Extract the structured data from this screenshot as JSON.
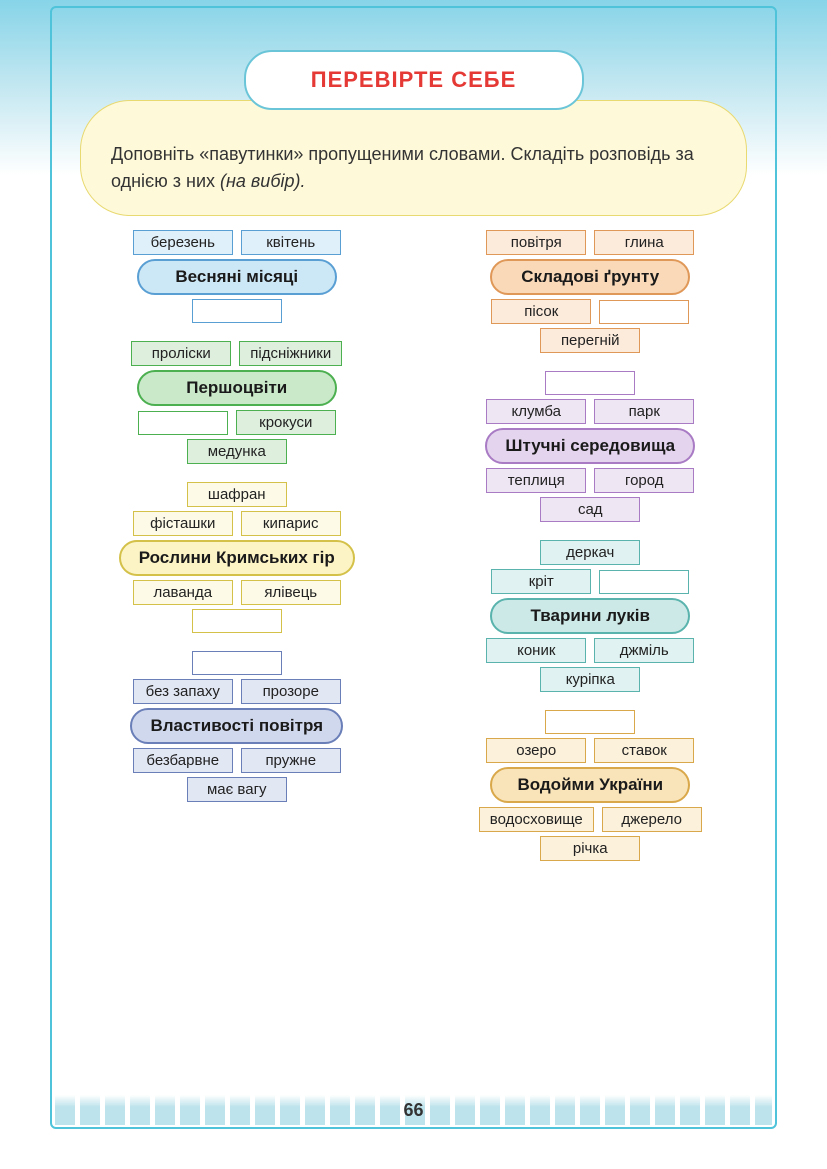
{
  "header_title": "ПЕРЕВІРТЕ СЕБЕ",
  "instruction": "Доповніть «павутинки» пропущеними словами. Складіть розповідь за однією з них ",
  "instruction_em": "(на вибір).",
  "page_number": "66",
  "columns": [
    [
      {
        "center": "Весняні місяці",
        "center_bg": "#cce7f5",
        "center_border": "#5a9fd4",
        "leaf_bg": "#e0f0fa",
        "leaf_border": "#5a9fd4",
        "top": [
          "березень",
          "квітень"
        ],
        "bottom": [
          ""
        ]
      },
      {
        "center": "Першоцвіти",
        "center_bg": "#c9e9c9",
        "center_border": "#4caf50",
        "leaf_bg": "#deefde",
        "leaf_border": "#4caf50",
        "top": [
          "проліски",
          "підсніжники"
        ],
        "bottom_rows": [
          [
            "",
            "крокуси"
          ],
          [
            "медунка"
          ]
        ]
      },
      {
        "center": "Рослини Кримських гір",
        "center_bg": "#fcf4c5",
        "center_border": "#d4c14a",
        "leaf_bg": "#fdfbe8",
        "leaf_border": "#d4c14a",
        "top_rows": [
          [
            "шафран"
          ],
          [
            "фісташки",
            "кипарис"
          ]
        ],
        "bottom_rows": [
          [
            "лаванда",
            "ялівець"
          ],
          [
            ""
          ]
        ]
      },
      {
        "center": "Властивості повітря",
        "center_bg": "#d0d8ee",
        "center_border": "#6a7fb8",
        "leaf_bg": "#e2e7f4",
        "leaf_border": "#6a7fb8",
        "top_rows": [
          [
            ""
          ],
          [
            "без запаху",
            "прозоре"
          ]
        ],
        "bottom_rows": [
          [
            "безбарвне",
            "пружне"
          ],
          [
            "має вагу"
          ]
        ]
      }
    ],
    [
      {
        "center": "Складові ґрунту",
        "center_bg": "#f9d9b8",
        "center_border": "#e09858",
        "leaf_bg": "#fceadb",
        "leaf_border": "#e09858",
        "top": [
          "повітря",
          "глина"
        ],
        "bottom_rows": [
          [
            "пісок",
            ""
          ],
          [
            "перегній"
          ]
        ]
      },
      {
        "center": "Штучні середовища",
        "center_bg": "#e4d4ed",
        "center_border": "#a87bc4",
        "leaf_bg": "#efe6f4",
        "leaf_border": "#a87bc4",
        "top_rows": [
          [
            ""
          ],
          [
            "клумба",
            "парк"
          ]
        ],
        "bottom_rows": [
          [
            "теплиця",
            "город"
          ],
          [
            "сад"
          ]
        ]
      },
      {
        "center": "Тварини луків",
        "center_bg": "#cce9e7",
        "center_border": "#5ab3ad",
        "leaf_bg": "#e0f2f1",
        "leaf_border": "#5ab3ad",
        "top_rows": [
          [
            "деркач"
          ],
          [
            "кріт",
            ""
          ]
        ],
        "bottom_rows": [
          [
            "коник",
            "джміль"
          ],
          [
            "куріпка"
          ]
        ]
      },
      {
        "center": "Водойми України",
        "center_bg": "#f9e3b8",
        "center_border": "#d9a84a",
        "leaf_bg": "#fcf1db",
        "leaf_border": "#d9a84a",
        "top_rows": [
          [
            ""
          ],
          [
            "озеро",
            "ставок"
          ]
        ],
        "bottom_rows": [
          [
            "водосховище",
            "джерело"
          ],
          [
            "річка"
          ]
        ]
      }
    ]
  ]
}
